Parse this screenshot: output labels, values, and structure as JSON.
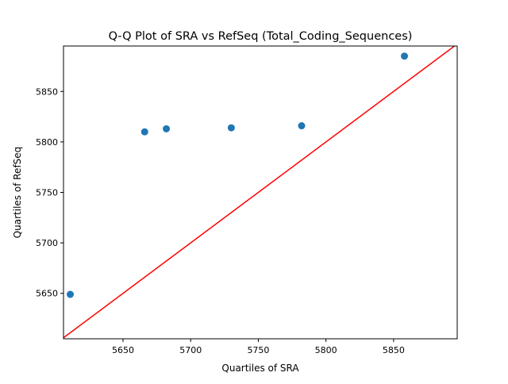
{
  "chart_data": {
    "type": "scatter",
    "title": "Q-Q Plot of SRA vs RefSeq (Total_Coding_Sequences)",
    "xlabel": "Quartiles of SRA",
    "ylabel": "Quartiles of RefSeq",
    "xlim": [
      5606,
      5897
    ],
    "ylim": [
      5605,
      5895
    ],
    "xticks": [
      5650,
      5700,
      5750,
      5800,
      5850
    ],
    "yticks": [
      5650,
      5700,
      5750,
      5800,
      5850
    ],
    "points": [
      {
        "x": 5611,
        "y": 5649
      },
      {
        "x": 5666,
        "y": 5810
      },
      {
        "x": 5682,
        "y": 5813
      },
      {
        "x": 5730,
        "y": 5814
      },
      {
        "x": 5782,
        "y": 5816
      },
      {
        "x": 5858,
        "y": 5885
      }
    ],
    "reference_line": {
      "type": "identity",
      "color": "#ff0000"
    },
    "marker_color": "#1f77b4",
    "grid": false
  }
}
